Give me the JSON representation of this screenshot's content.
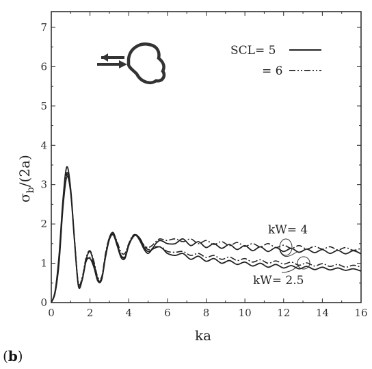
{
  "panel": {
    "open": "(",
    "letter": "b",
    "close": ")"
  },
  "chart_data": {
    "type": "line",
    "xlabel": "ka",
    "ylabel": {
      "main": "σ",
      "sub": "b",
      "rest": "/(2a)"
    },
    "xlim": [
      0,
      16
    ],
    "ylim": [
      0,
      7.4
    ],
    "xticks": [
      0,
      2,
      4,
      6,
      8,
      10,
      12,
      14,
      16
    ],
    "yticks": [
      0,
      1,
      2,
      3,
      4,
      5,
      6,
      7
    ],
    "grid": false,
    "legend": [
      {
        "label": "SCL= 5",
        "style": "solid"
      },
      {
        "label": "= 6",
        "style": "dash-dot"
      }
    ],
    "annotations": [
      {
        "text": "kW= 4",
        "target_x": 12.0,
        "target_y": 1.45
      },
      {
        "text": "kW= 2.5",
        "target_x": 13.0,
        "target_y": 0.95
      }
    ],
    "series": [
      {
        "group": "kW= 4",
        "style": "solid",
        "x": [
          0,
          0.2,
          0.4,
          0.6,
          0.8,
          1.0,
          1.2,
          1.4,
          1.6,
          1.8,
          2.0,
          2.2,
          2.4,
          2.6,
          2.8,
          3.0,
          3.2,
          3.4,
          3.6,
          3.8,
          4.0,
          4.2,
          4.4,
          4.6,
          4.8,
          5.0,
          5.2,
          5.4,
          5.6,
          5.8,
          6.0,
          6.4,
          6.8,
          7.2,
          7.6,
          8.0,
          8.4,
          8.8,
          9.2,
          9.6,
          10.0,
          10.4,
          10.8,
          11.2,
          11.6,
          12.0,
          12.4,
          12.8,
          13.2,
          13.6,
          14.0,
          14.4,
          14.8,
          15.2,
          15.6,
          16.0
        ],
        "y": [
          0,
          0.3,
          1.2,
          2.6,
          3.45,
          2.9,
          1.6,
          0.45,
          0.6,
          1.1,
          1.3,
          1.0,
          0.6,
          0.6,
          1.2,
          1.65,
          1.78,
          1.5,
          1.2,
          1.15,
          1.45,
          1.68,
          1.7,
          1.55,
          1.35,
          1.25,
          1.35,
          1.5,
          1.58,
          1.55,
          1.5,
          1.5,
          1.62,
          1.45,
          1.55,
          1.4,
          1.5,
          1.38,
          1.48,
          1.35,
          1.45,
          1.32,
          1.42,
          1.3,
          1.4,
          1.3,
          1.38,
          1.28,
          1.36,
          1.27,
          1.35,
          1.25,
          1.33,
          1.24,
          1.32,
          1.24
        ]
      },
      {
        "group": "kW= 4",
        "style": "dash-dot",
        "x": [
          0,
          0.2,
          0.4,
          0.6,
          0.8,
          1.0,
          1.2,
          1.4,
          1.6,
          1.8,
          2.0,
          2.2,
          2.4,
          2.6,
          2.8,
          3.0,
          3.2,
          3.4,
          3.6,
          3.8,
          4.0,
          4.2,
          4.4,
          4.6,
          4.8,
          5.0,
          5.2,
          5.4,
          5.6,
          5.8,
          6.0,
          6.4,
          6.8,
          7.2,
          7.6,
          8.0,
          8.4,
          8.8,
          9.2,
          9.6,
          10.0,
          10.4,
          10.8,
          11.2,
          11.6,
          12.0,
          12.4,
          12.8,
          13.2,
          13.6,
          14.0,
          14.4,
          14.8,
          15.2,
          15.6,
          16.0
        ],
        "y": [
          0,
          0.28,
          1.1,
          2.5,
          3.3,
          2.85,
          1.6,
          0.5,
          0.65,
          1.15,
          1.32,
          1.05,
          0.65,
          0.65,
          1.25,
          1.65,
          1.75,
          1.55,
          1.28,
          1.25,
          1.5,
          1.7,
          1.72,
          1.6,
          1.45,
          1.4,
          1.45,
          1.55,
          1.62,
          1.6,
          1.58,
          1.62,
          1.55,
          1.62,
          1.5,
          1.58,
          1.48,
          1.55,
          1.45,
          1.53,
          1.43,
          1.5,
          1.42,
          1.5,
          1.4,
          1.46,
          1.38,
          1.45,
          1.36,
          1.43,
          1.36,
          1.42,
          1.34,
          1.4,
          1.33,
          1.38
        ]
      },
      {
        "group": "kW= 2.5",
        "style": "solid",
        "x": [
          0,
          0.2,
          0.4,
          0.6,
          0.8,
          1.0,
          1.2,
          1.4,
          1.6,
          1.8,
          2.0,
          2.2,
          2.4,
          2.6,
          2.8,
          3.0,
          3.2,
          3.4,
          3.6,
          3.8,
          4.0,
          4.2,
          4.4,
          4.6,
          4.8,
          5.0,
          5.2,
          5.4,
          5.6,
          5.8,
          6.0,
          6.4,
          6.8,
          7.2,
          7.6,
          8.0,
          8.4,
          8.8,
          9.2,
          9.6,
          10.0,
          10.4,
          10.8,
          11.2,
          11.6,
          12.0,
          12.4,
          12.8,
          13.2,
          13.6,
          14.0,
          14.4,
          14.8,
          15.2,
          15.6,
          16.0
        ],
        "y": [
          0,
          0.25,
          1.0,
          2.4,
          3.2,
          2.8,
          1.55,
          0.42,
          0.58,
          1.05,
          1.12,
          0.9,
          0.55,
          0.58,
          1.15,
          1.6,
          1.72,
          1.45,
          1.15,
          1.12,
          1.45,
          1.65,
          1.72,
          1.6,
          1.4,
          1.3,
          1.35,
          1.4,
          1.42,
          1.35,
          1.25,
          1.2,
          1.25,
          1.1,
          1.18,
          1.05,
          1.12,
          1.0,
          1.07,
          0.97,
          1.03,
          0.93,
          1.0,
          0.9,
          0.97,
          0.88,
          0.94,
          0.86,
          0.92,
          0.84,
          0.9,
          0.83,
          0.88,
          0.82,
          0.86,
          0.8
        ]
      },
      {
        "group": "kW= 2.5",
        "style": "dash-dot",
        "x": [
          0,
          0.2,
          0.4,
          0.6,
          0.8,
          1.0,
          1.2,
          1.4,
          1.6,
          1.8,
          2.0,
          2.2,
          2.4,
          2.6,
          2.8,
          3.0,
          3.2,
          3.4,
          3.6,
          3.8,
          4.0,
          4.2,
          4.4,
          4.6,
          4.8,
          5.0,
          5.2,
          5.4,
          5.6,
          5.8,
          6.0,
          6.4,
          6.8,
          7.2,
          7.6,
          8.0,
          8.4,
          8.8,
          9.2,
          9.6,
          10.0,
          10.4,
          10.8,
          11.2,
          11.6,
          12.0,
          12.4,
          12.8,
          13.2,
          13.6,
          14.0,
          14.4,
          14.8,
          15.2,
          15.6,
          16.0
        ],
        "y": [
          0,
          0.27,
          1.05,
          2.45,
          3.25,
          2.82,
          1.58,
          0.46,
          0.62,
          1.08,
          1.15,
          0.95,
          0.6,
          0.62,
          1.2,
          1.62,
          1.72,
          1.48,
          1.2,
          1.18,
          1.48,
          1.66,
          1.72,
          1.62,
          1.45,
          1.35,
          1.38,
          1.42,
          1.42,
          1.38,
          1.3,
          1.28,
          1.3,
          1.2,
          1.25,
          1.15,
          1.2,
          1.1,
          1.16,
          1.07,
          1.12,
          1.03,
          1.09,
          1.0,
          1.06,
          0.98,
          1.03,
          0.95,
          1.01,
          0.93,
          0.99,
          0.92,
          0.97,
          0.9,
          0.95,
          0.9
        ]
      }
    ]
  }
}
